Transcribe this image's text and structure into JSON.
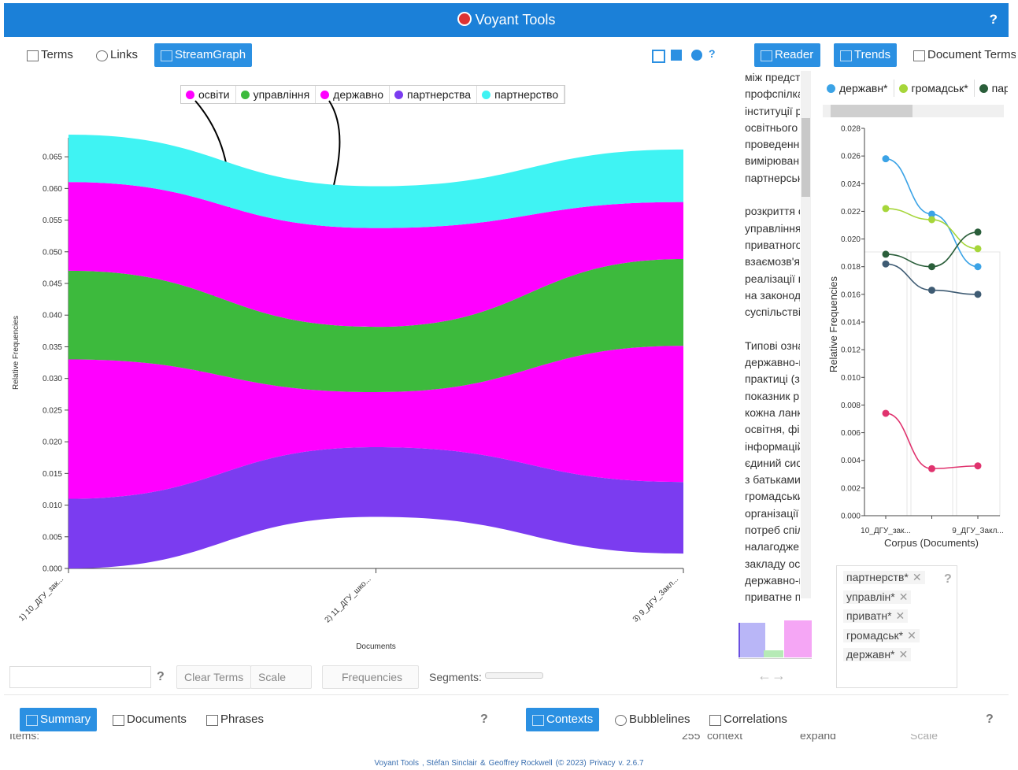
{
  "header": {
    "title": "Voyant Tools",
    "help": "?"
  },
  "left_panel": {
    "tabs": [
      "Terms",
      "Links",
      "StreamGraph"
    ],
    "toolbar": {
      "help": "?",
      "clear": "Clear Terms",
      "scale": "Scale",
      "frequencies": "Frequencies",
      "segments": "Segments:"
    }
  },
  "reader": {
    "tab": "Reader",
    "paragraphs": [
      [
        "між предст",
        "профспілка",
        "інституції р",
        "освітнього",
        "проведенн",
        "вимірюван",
        "партнерськ"
      ],
      [
        "розкриття с",
        "управління",
        "приватного",
        "взаємозв'я",
        "реалізації в",
        "на законод",
        "суспільстві"
      ],
      [
        "Типові озна",
        "державно-п",
        "практиці (з",
        "показник рі",
        "кожна ланк",
        "освітня, фі",
        "інформацій",
        "єдиний сист",
        "з батьками",
        "громадськи",
        "організації",
        "потреб спіл",
        "налагоджен",
        "закладу осі",
        "державно-п",
        "приватне п"
      ]
    ]
  },
  "right_panel": {
    "tabs": [
      "Trends",
      "Document Terms"
    ],
    "help": "?",
    "terms": [
      "партнерств*",
      "управлін*",
      "приватн*",
      "громадськ*",
      "державн*"
    ]
  },
  "chart_data": [
    {
      "type": "streamgraph",
      "xlabel": "Documents",
      "ylabel": "Relative Frequencies",
      "categories": [
        "1) 10_ДГУ_зак...",
        "2) 11_ДГУ_шко...",
        "3) 9_ДГУ_Закл..."
      ],
      "series": [
        {
          "name": "освіти",
          "color": "#ff00ff",
          "values": [
            0.022,
            0.0087,
            0.0215
          ]
        },
        {
          "name": "управління",
          "color": "#3dba3d",
          "values": [
            0.014,
            0.0103,
            0.0137
          ]
        },
        {
          "name": "державно",
          "color": "#ff00ff",
          "values": [
            0.014,
            0.0156,
            0.009
          ]
        },
        {
          "name": "партнерства",
          "color": "#7b3cf0",
          "values": [
            0.011,
            0.011,
            0.0113
          ]
        },
        {
          "name": "партнерство",
          "color": "#3ff3f3",
          "values": [
            0.0075,
            0.0066,
            0.0083
          ]
        }
      ],
      "ylim": [
        0,
        0.068
      ],
      "yticks": [
        {
          "value": 0,
          "label": "0.000"
        },
        {
          "value": 0.005,
          "label": "0.005"
        },
        {
          "value": 0.01,
          "label": "0.010"
        },
        {
          "value": 0.015,
          "label": "0.015"
        },
        {
          "value": 0.02,
          "label": "0.020"
        },
        {
          "value": 0.025,
          "label": "0.025"
        },
        {
          "value": 0.03,
          "label": "0.030"
        },
        {
          "value": 0.035,
          "label": "0.035"
        },
        {
          "value": 0.04,
          "label": "0.040"
        },
        {
          "value": 0.045,
          "label": "0.045"
        },
        {
          "value": 0.05,
          "label": "0.050"
        },
        {
          "value": 0.055,
          "label": "0.055"
        },
        {
          "value": 0.06,
          "label": "0.060"
        },
        {
          "value": 0.065,
          "label": "0.065"
        }
      ]
    },
    {
      "type": "line",
      "xlabel": "Corpus (Documents)",
      "ylabel": "Relative Frequencies",
      "categories": [
        "10_ДГУ_зак...",
        null,
        "9_ДГУ_Закл..."
      ],
      "series": [
        {
          "name": "державн*",
          "color": "#3ba3e6",
          "values": [
            0.0258,
            0.0218,
            0.018
          ]
        },
        {
          "name": "громадськ*",
          "color": "#a6d63a",
          "values": [
            0.0222,
            0.0214,
            0.0193
          ]
        },
        {
          "name": "партнерств*",
          "color": "#2a5e3a",
          "values": [
            0.0189,
            0.018,
            0.0205
          ]
        },
        {
          "name": "управлін*",
          "color": "#3e5b73",
          "values": [
            0.0182,
            0.0163,
            0.016
          ]
        },
        {
          "name": "приватн*",
          "color": "#e0336e",
          "values": [
            0.0074,
            0.0034,
            0.0036
          ]
        }
      ],
      "ylim": [
        0,
        0.028
      ],
      "yticks": [
        {
          "value": 0,
          "label": "0.000"
        },
        {
          "value": 0.002,
          "label": "0.002"
        },
        {
          "value": 0.004,
          "label": "0.004"
        },
        {
          "value": 0.006,
          "label": "0.006"
        },
        {
          "value": 0.008,
          "label": "0.008"
        },
        {
          "value": 0.01,
          "label": "0.010"
        },
        {
          "value": 0.012,
          "label": "0.012"
        },
        {
          "value": 0.014,
          "label": "0.014"
        },
        {
          "value": 0.016,
          "label": "0.016"
        },
        {
          "value": 0.018,
          "label": "0.018"
        },
        {
          "value": 0.02,
          "label": "0.020"
        },
        {
          "value": 0.022,
          "label": "0.022"
        },
        {
          "value": 0.024,
          "label": "0.024"
        },
        {
          "value": 0.026,
          "label": "0.026"
        },
        {
          "value": 0.028,
          "label": "0.028"
        }
      ]
    }
  ],
  "bottom_left": {
    "tabs": [
      "Summary",
      "Documents",
      "Phrases"
    ],
    "help": "?",
    "items": "Items:"
  },
  "bottom_right": {
    "tabs": [
      "Contexts",
      "Bubblelines",
      "Correlations"
    ],
    "help": "?",
    "count": "255",
    "context": "context",
    "expand": "expand",
    "scale": "Scale"
  },
  "footer": [
    "Voyant Tools",
    ", Stéfan Sinclair",
    "&",
    "Geoffrey Rockwell",
    "(© 2023)",
    "Privacy",
    "v. 2.6.7"
  ]
}
